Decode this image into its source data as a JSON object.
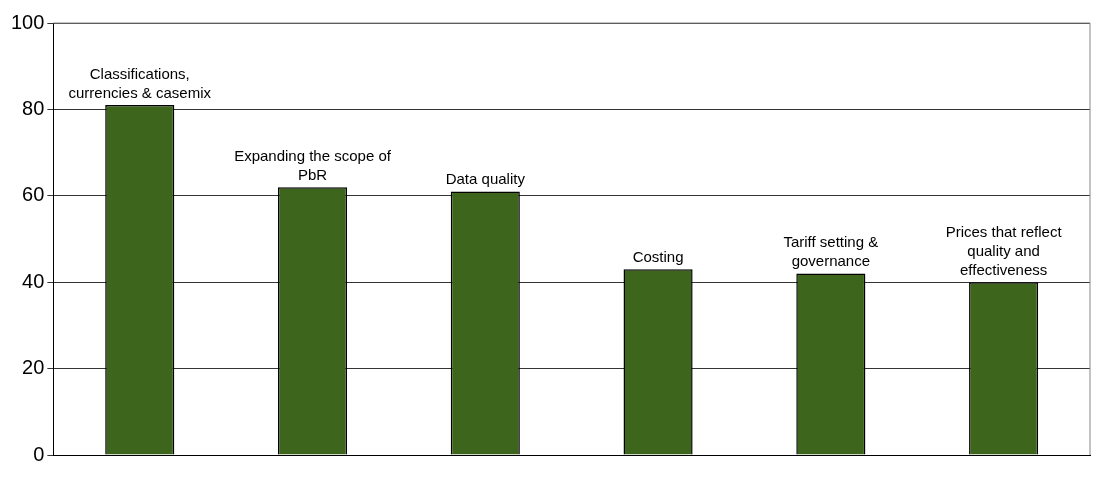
{
  "chart_data": {
    "type": "bar",
    "categories": [
      "Classifications, currencies & casemix",
      "Expanding the scope of PbR",
      "Data quality",
      "Costing",
      "Tariff setting & governance",
      "Prices that reflect quality and effectiveness"
    ],
    "values": [
      81,
      62,
      61,
      43,
      42,
      40
    ],
    "color": "#3d651b",
    "ylim": [
      0,
      100
    ],
    "yticks": [
      0,
      20,
      40,
      60,
      80,
      100
    ],
    "grid": "y",
    "legend": false,
    "tick_labels": "y"
  }
}
